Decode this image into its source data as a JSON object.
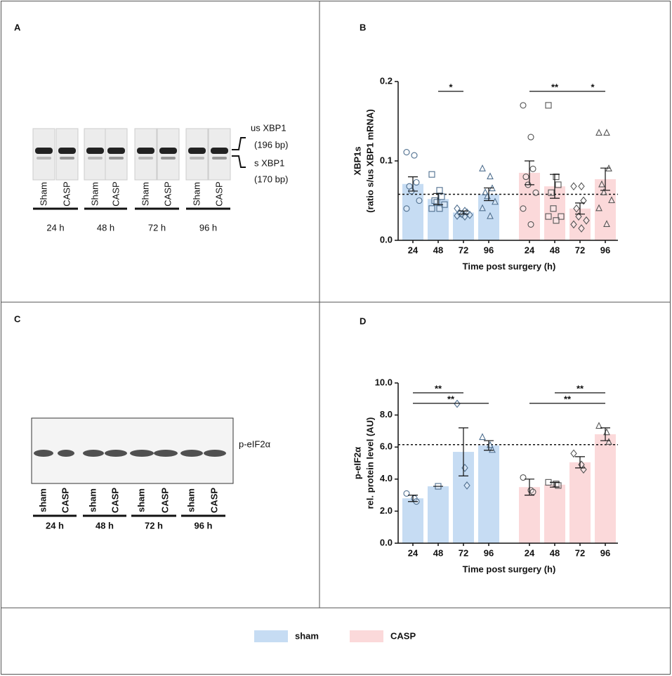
{
  "panels": {
    "a": "A",
    "b": "B",
    "c": "C",
    "d": "D"
  },
  "gel_a": {
    "lanes": [
      "Sham",
      "CASP",
      "Sham",
      "CASP",
      "Sham",
      "CASP",
      "Sham",
      "CASP"
    ],
    "times": [
      "24 h",
      "48 h",
      "72 h",
      "96 h"
    ],
    "bands": [
      "us XBP1",
      "(196 bp)",
      "s XBP1",
      "(170 bp)"
    ]
  },
  "gel_c": {
    "lanes": [
      "sham",
      "CASP",
      "sham",
      "CASP",
      "sham",
      "CASP",
      "sham",
      "CASP"
    ],
    "times": [
      "24  h",
      "48 h",
      "72 h",
      "96 h"
    ],
    "band": "p-eIF2α"
  },
  "chart_data": [
    {
      "type": "bar",
      "ylabel": [
        "XBP1s",
        "(ratio s/us XBP1 mRNA)"
      ],
      "xlabel": "Time post surgery (h)",
      "categories": [
        "24",
        "48",
        "72",
        "96",
        "24",
        "48",
        "72",
        "96"
      ],
      "markers": [
        "circle",
        "square",
        "diamond",
        "triangle",
        "circle",
        "square",
        "diamond",
        "triangle"
      ],
      "series": [
        {
          "name": "sham",
          "color": "#c6dcf3",
          "values": [
            0.071,
            0.052,
            0.035,
            0.058,
            null,
            null,
            null,
            null
          ],
          "errors": [
            0.009,
            0.007,
            0.002,
            0.008,
            null,
            null,
            null,
            null
          ],
          "points": [
            [
              0.111,
              0.107,
              0.073,
              0.068,
              0.062,
              0.05,
              0.04
            ],
            [
              0.083,
              0.063,
              0.055,
              0.05,
              0.048,
              0.045,
              0.04,
              0.04
            ],
            [
              0.04,
              0.037,
              0.035,
              0.034,
              0.033,
              0.032,
              0.031,
              0.03
            ],
            [
              0.09,
              0.08,
              0.065,
              0.06,
              0.055,
              0.048,
              0.04,
              0.03
            ],
            null,
            null,
            null,
            null
          ]
        },
        {
          "name": "CASP",
          "color": "#fbd9da",
          "values": [
            null,
            null,
            null,
            null,
            0.085,
            0.068,
            0.04,
            0.077
          ],
          "errors": [
            null,
            null,
            null,
            null,
            0.015,
            0.015,
            0.007,
            0.014
          ],
          "points": [
            null,
            null,
            null,
            null,
            [
              0.17,
              0.13,
              0.09,
              0.08,
              0.07,
              0.06,
              0.04,
              0.02
            ],
            [
              0.17,
              0.08,
              0.07,
              0.06,
              0.04,
              0.03,
              0.03,
              0.025
            ],
            [
              0.068,
              0.068,
              0.05,
              0.04,
              0.03,
              0.025,
              0.02,
              0.015
            ],
            [
              0.135,
              0.135,
              0.09,
              0.07,
              0.06,
              0.05,
              0.04,
              0.02
            ]
          ]
        }
      ],
      "reference_line": 0.058,
      "annotations": [
        {
          "label": "*",
          "from": 1,
          "to": 2
        },
        {
          "label": "**",
          "from": 4,
          "to": 6
        },
        {
          "label": "*",
          "from": 6,
          "to": 7
        }
      ],
      "ylim": [
        0,
        0.2
      ],
      "yticks": [
        {
          "value": 0,
          "label": "0.0"
        },
        {
          "value": 0.1,
          "label": "0.1"
        },
        {
          "value": 0.2,
          "label": "0.2"
        }
      ]
    },
    {
      "type": "bar",
      "ylabel": [
        "p-eIF2α",
        "rel. protein level (AU)"
      ],
      "xlabel": "Time post surgery (h)",
      "categories": [
        "24",
        "48",
        "72",
        "96",
        "24",
        "48",
        "72",
        "96"
      ],
      "markers": [
        "circle",
        "square",
        "diamond",
        "triangle",
        "circle",
        "square",
        "diamond",
        "triangle"
      ],
      "series": [
        {
          "color": "#c6dcf3",
          "values": [
            2.8,
            3.55,
            5.7,
            6.1,
            null,
            null,
            null,
            null
          ],
          "errors": [
            0.2,
            0,
            1.5,
            0.3,
            null,
            null,
            null,
            null
          ],
          "points": [
            [
              3.1,
              2.8,
              2.6
            ],
            [
              3.55
            ],
            [
              8.7,
              4.7,
              3.6
            ],
            [
              6.6,
              6.1,
              5.8
            ],
            null,
            null,
            null,
            null
          ]
        },
        {
          "color": "#fbd9da",
          "values": [
            null,
            null,
            null,
            null,
            3.5,
            3.65,
            5.05,
            6.8
          ],
          "errors": [
            null,
            null,
            null,
            null,
            0.5,
            0.15,
            0.35,
            0.4
          ],
          "points": [
            null,
            null,
            null,
            null,
            [
              4.1,
              3.3,
              3.2
            ],
            [
              3.8,
              3.7,
              3.6
            ],
            [
              5.6,
              4.9,
              4.6
            ],
            [
              7.3,
              6.9,
              6.3
            ]
          ]
        }
      ],
      "reference_line": 6.15,
      "annotations": [
        {
          "label": "**",
          "from": 0,
          "to": 2
        },
        {
          "label": "**",
          "from": 0,
          "to": 3
        },
        {
          "label": "**",
          "from": 5,
          "to": 7
        },
        {
          "label": "**",
          "from": 4,
          "to": 7
        }
      ],
      "ylim": [
        0,
        10
      ],
      "yticks": [
        {
          "value": 0,
          "label": "0.0"
        },
        {
          "value": 2,
          "label": "2.0"
        },
        {
          "value": 4,
          "label": "4.0"
        },
        {
          "value": 6,
          "label": "6.0"
        },
        {
          "value": 8,
          "label": "8.0"
        },
        {
          "value": 10,
          "label": "10.0"
        }
      ]
    }
  ]
}
